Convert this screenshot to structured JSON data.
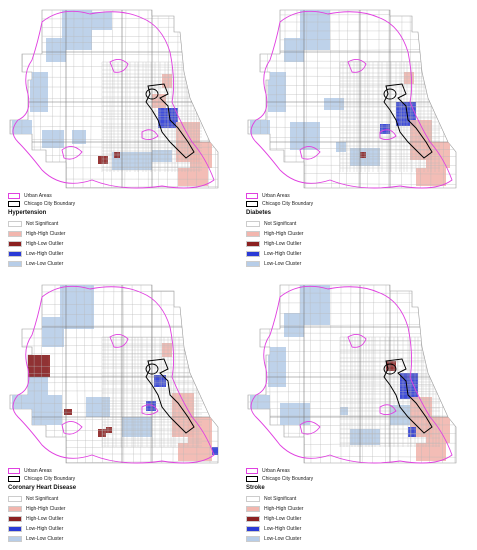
{
  "figure": {
    "boundary_legend": [
      {
        "label": "Urban Areas",
        "color": "#e040e0"
      },
      {
        "label": "Chicago City Boundary",
        "color": "#000000"
      }
    ],
    "category_legend": [
      {
        "label": "Not Significant",
        "color": "#ffffff"
      },
      {
        "label": "High-High Cluster",
        "color": "#f2b6ae"
      },
      {
        "label": "High-Low Outlier",
        "color": "#8b2020"
      },
      {
        "label": "Low-High Outlier",
        "color": "#2a3ad6"
      },
      {
        "label": "Low-Low Cluster",
        "color": "#b7cde8"
      }
    ],
    "panels": [
      {
        "id": "hypertension",
        "title": "Hypertension"
      },
      {
        "id": "diabetes",
        "title": "Diabetes"
      },
      {
        "id": "chd",
        "title": "Coronary Heart Disease"
      },
      {
        "id": "stroke",
        "title": "Stroke"
      }
    ]
  }
}
